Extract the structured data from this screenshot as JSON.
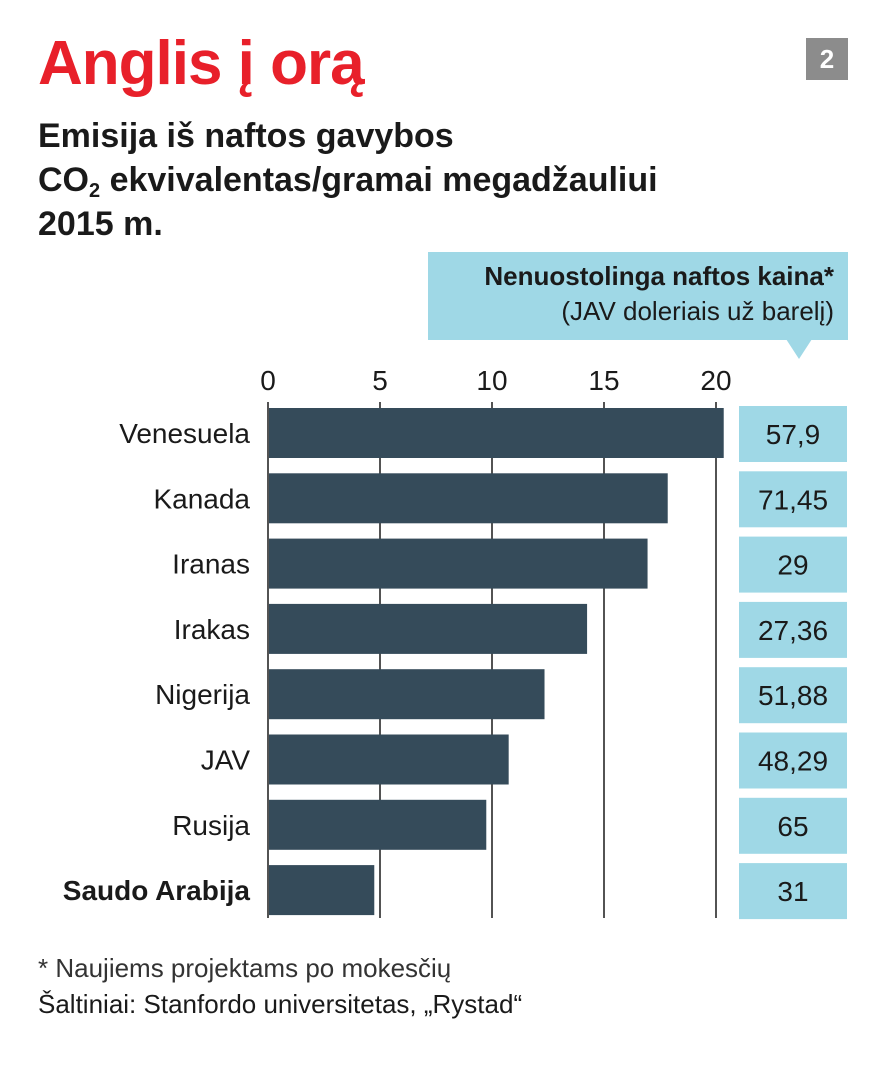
{
  "header": {
    "title": "Anglis į orą",
    "badge": "2",
    "subtitle_line1": "Emisija iš naftos gavybos",
    "subtitle_line2_prefix": "CO",
    "subtitle_line2_sub": "2",
    "subtitle_line2_suffix": " ekvivalentas/gramai megadžauliui",
    "subtitle_line3": "2015 m."
  },
  "price_column": {
    "header_line1": "Nenuostolinga naftos kaina*",
    "header_line2": "(JAV doleriais už barelį)",
    "values": [
      "57,9",
      "71,45",
      "29",
      "27,36",
      "51,88",
      "48,29",
      "65",
      "31"
    ]
  },
  "footer": {
    "note": "* Naujiems projektams po mokesčių",
    "source": "Šaltiniai: Stanfordo universitetas, „Rystad“"
  },
  "colors": {
    "title": "#e8202a",
    "bar": "#354b5a",
    "price_box": "#9fd8e6",
    "badge": "#8c8c8c"
  },
  "chart_data": {
    "type": "bar",
    "orientation": "horizontal",
    "categories": [
      "Venesuela",
      "Kanada",
      "Iranas",
      "Irakas",
      "Nigerija",
      "JAV",
      "Rusija",
      "Saudo Arabija"
    ],
    "highlighted_category": "Saudo Arabija",
    "values": [
      20.3,
      17.8,
      16.9,
      14.2,
      12.3,
      10.7,
      9.7,
      4.7
    ],
    "xlim": [
      0,
      20
    ],
    "xticks": [
      "0",
      "5",
      "10",
      "15",
      "20"
    ],
    "grid": true
  }
}
